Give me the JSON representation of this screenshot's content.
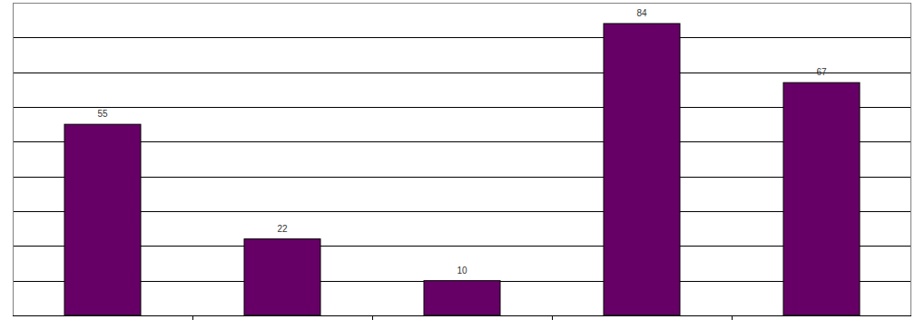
{
  "chart_data": {
    "type": "bar",
    "categories": [
      null,
      null,
      null,
      null,
      null
    ],
    "values": [
      55,
      22,
      10,
      84,
      67
    ],
    "color": "#660066",
    "ylim": [
      0,
      90
    ],
    "yticks": [
      0,
      10,
      20,
      30,
      40,
      50,
      60,
      70,
      80,
      90
    ],
    "grid": true,
    "data_labels": true,
    "tick_labels": false
  }
}
